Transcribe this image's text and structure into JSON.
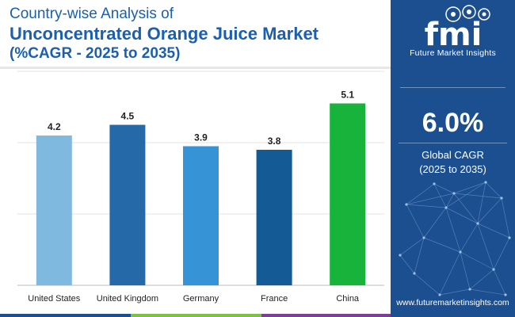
{
  "title": {
    "line1": "Country-wise Analysis of",
    "line2": "Unconcentrated Orange Juice Market",
    "line3": "(%CAGR - 2025 to 2035)"
  },
  "brand": {
    "name": "Future Market Insights",
    "mark": "fmi",
    "website": "www.futuremarketinsights.com"
  },
  "summary": {
    "value": "6.0%",
    "label": "Global CAGR",
    "period": "(2025 to 2035)"
  },
  "colors": {
    "title": "#1b5fae",
    "sidebar": "#1c4f8f",
    "bottom_strip": [
      "#1c4f8f",
      "#7dc242",
      "#7b3f97",
      "#1c4f8f"
    ]
  },
  "chart_data": {
    "type": "bar",
    "title": "",
    "xlabel": "",
    "ylabel": "",
    "categories": [
      "United States",
      "United Kingdom",
      "Germany",
      "France",
      "China"
    ],
    "values": [
      4.2,
      4.5,
      3.9,
      3.8,
      5.1
    ],
    "data_labels": [
      "4.2",
      "4.5",
      "3.9",
      "3.8",
      "5.1"
    ],
    "bar_colors": [
      "#7fb9e0",
      "#2669a8",
      "#3593d6",
      "#145a94",
      "#17b33a"
    ],
    "ylim": [
      0,
      6
    ],
    "gridlines": [
      0,
      2,
      4,
      6
    ],
    "grid": true,
    "legend": "none"
  }
}
